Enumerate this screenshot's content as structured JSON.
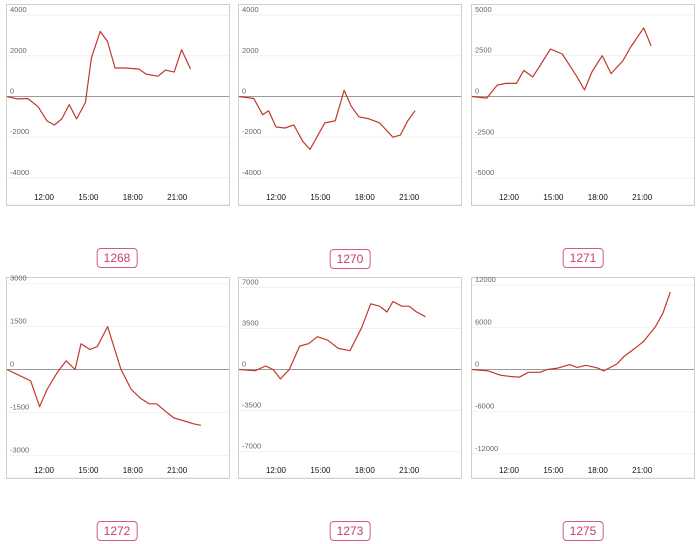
{
  "chart_data": [
    {
      "type": "line",
      "id": "1268",
      "ylim": [
        -4500,
        4500
      ],
      "y_ticks": [
        "4000",
        "2000",
        "0",
        "-2000",
        "-4000"
      ],
      "y_tick_values": [
        4000,
        2000,
        0,
        -2000,
        -4000
      ],
      "x_ticks": [
        "12:00",
        "15:00",
        "18:00",
        "21:00"
      ],
      "x_tick_values": [
        12,
        15,
        18,
        21
      ],
      "xlim": [
        9.5,
        24.5
      ],
      "color": "#c0392b",
      "x": [
        9.5,
        10.2,
        10.9,
        11.6,
        12.2,
        12.7,
        13.2,
        13.7,
        14.2,
        14.8,
        15.2,
        15.8,
        16.3,
        16.8,
        17.5,
        18.4,
        18.9,
        19.7,
        20.2,
        20.8,
        21.3,
        21.9
      ],
      "values": [
        0,
        -120,
        -100,
        -500,
        -1200,
        -1400,
        -1100,
        -400,
        -1100,
        -300,
        1900,
        3200,
        2700,
        1400,
        1400,
        1350,
        1100,
        1000,
        1300,
        1200,
        2300,
        1350
      ]
    },
    {
      "type": "line",
      "id": "1270",
      "ylim": [
        -4500,
        4500
      ],
      "y_ticks": [
        "4000",
        "2000",
        "0",
        "-2000",
        "-4000"
      ],
      "y_tick_values": [
        4000,
        2000,
        0,
        -2000,
        -4000
      ],
      "x_ticks": [
        "12:00",
        "15:00",
        "18:00",
        "21:00"
      ],
      "x_tick_values": [
        12,
        15,
        18,
        21
      ],
      "xlim": [
        9.5,
        24.5
      ],
      "color": "#c0392b",
      "x": [
        9.5,
        10.5,
        11.1,
        11.5,
        12.0,
        12.6,
        13.2,
        13.8,
        14.3,
        15.3,
        16.0,
        16.6,
        17.1,
        17.6,
        18.3,
        19.0,
        19.9,
        20.4,
        20.9,
        21.4
      ],
      "values": [
        0,
        -100,
        -900,
        -700,
        -1500,
        -1550,
        -1400,
        -2200,
        -2600,
        -1300,
        -1200,
        300,
        -500,
        -1000,
        -1100,
        -1300,
        -2000,
        -1900,
        -1200,
        -700
      ]
    },
    {
      "type": "line",
      "id": "1271",
      "ylim": [
        -5600,
        5600
      ],
      "y_ticks": [
        "5000",
        "2500",
        "0",
        "-2500",
        "-5000"
      ],
      "y_tick_values": [
        5000,
        2500,
        0,
        -2500,
        -5000
      ],
      "x_ticks": [
        "12:00",
        "15:00",
        "18:00",
        "21:00"
      ],
      "x_tick_values": [
        12,
        15,
        18,
        21
      ],
      "xlim": [
        9.5,
        24.5
      ],
      "color": "#c0392b",
      "x": [
        9.5,
        10.5,
        11.2,
        11.8,
        12.5,
        13.0,
        13.6,
        14.1,
        14.8,
        15.6,
        16.6,
        17.1,
        17.6,
        18.3,
        18.9,
        19.7,
        20.2,
        21.1,
        21.6
      ],
      "values": [
        0,
        -100,
        700,
        800,
        800,
        1600,
        1200,
        1900,
        2900,
        2600,
        1200,
        400,
        1500,
        2500,
        1400,
        2200,
        3000,
        4200,
        3100
      ]
    },
    {
      "type": "line",
      "id": "1272",
      "ylim": [
        -3200,
        3200
      ],
      "y_ticks": [
        "3000",
        "1500",
        "0",
        "-1500",
        "-3000"
      ],
      "y_tick_values": [
        3000,
        1500,
        0,
        -1500,
        -3000
      ],
      "x_ticks": [
        "12:00",
        "15:00",
        "18:00",
        "21:00"
      ],
      "x_tick_values": [
        12,
        15,
        18,
        21
      ],
      "xlim": [
        9.5,
        24.5
      ],
      "color": "#c0392b",
      "x": [
        9.5,
        11.1,
        11.7,
        12.2,
        12.9,
        13.5,
        14.1,
        14.5,
        15.1,
        15.6,
        16.3,
        17.2,
        17.9,
        18.5,
        19.1,
        19.6,
        20.3,
        20.8,
        21.5,
        22.1,
        22.6
      ],
      "values": [
        0,
        -400,
        -1300,
        -700,
        -100,
        300,
        0,
        900,
        700,
        800,
        1500,
        0,
        -700,
        -1000,
        -1200,
        -1200,
        -1500,
        -1700,
        -1800,
        -1900,
        -1950
      ]
    },
    {
      "type": "line",
      "id": "1273",
      "ylim": [
        -7800,
        7800
      ],
      "y_ticks": [
        "7000",
        "3500",
        "0",
        "-3500",
        "-7000"
      ],
      "y_tick_values": [
        7000,
        3500,
        0,
        -3500,
        -7000
      ],
      "x_ticks": [
        "12:00",
        "15:00",
        "18:00",
        "21:00"
      ],
      "x_tick_values": [
        12,
        15,
        18,
        21
      ],
      "xlim": [
        9.5,
        24.5
      ],
      "color": "#c0392b",
      "x": [
        9.5,
        10.6,
        11.3,
        11.8,
        12.3,
        12.9,
        13.6,
        14.2,
        14.8,
        15.5,
        16.2,
        17.0,
        17.8,
        18.4,
        19.0,
        19.5,
        19.9,
        20.5,
        21.0,
        21.5,
        22.1
      ],
      "values": [
        0,
        -100,
        300,
        0,
        -800,
        0,
        2000,
        2200,
        2800,
        2500,
        1800,
        1600,
        3600,
        5600,
        5400,
        4900,
        5800,
        5400,
        5400,
        4900,
        4500
      ]
    },
    {
      "type": "line",
      "id": "1275",
      "ylim": [
        -13000,
        13000
      ],
      "y_ticks": [
        "12000",
        "6000",
        "0",
        "-6000",
        "-12000"
      ],
      "y_tick_values": [
        12000,
        6000,
        0,
        -6000,
        -12000
      ],
      "x_ticks": [
        "12:00",
        "15:00",
        "18:00",
        "21:00"
      ],
      "x_tick_values": [
        12,
        15,
        18,
        21
      ],
      "xlim": [
        9.5,
        24.5
      ],
      "color": "#c0392b",
      "x": [
        9.5,
        10.6,
        11.4,
        12.1,
        12.7,
        13.3,
        14.1,
        14.6,
        15.3,
        16.1,
        16.6,
        17.2,
        18.0,
        18.4,
        19.3,
        19.8,
        20.5,
        21.1,
        21.9,
        22.4,
        22.9
      ],
      "values": [
        0,
        -200,
        -800,
        -1000,
        -1100,
        -400,
        -400,
        0,
        200,
        700,
        300,
        600,
        200,
        -200,
        800,
        1900,
        3000,
        4000,
        6100,
        8000,
        11000
      ]
    }
  ],
  "badges": [
    "1268",
    "1270",
    "1271",
    "1272",
    "1273",
    "1275"
  ]
}
